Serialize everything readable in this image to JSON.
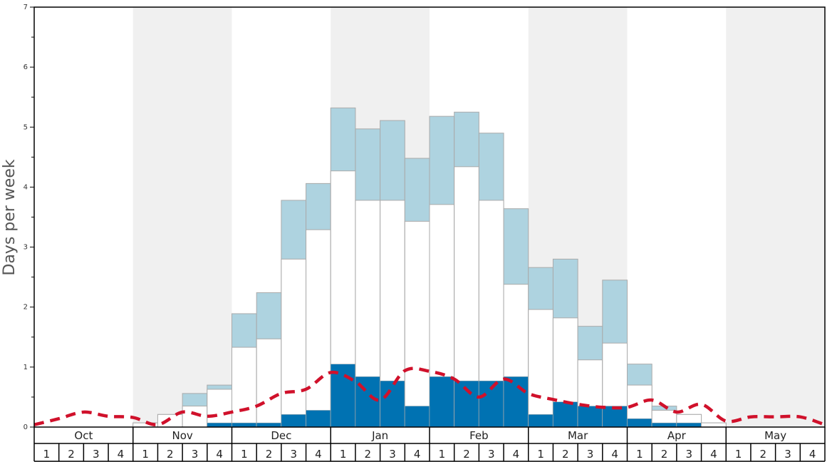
{
  "chart_data": {
    "type": "bar",
    "ylabel": "Days per week",
    "ylim": [
      0,
      7
    ],
    "yticks": [
      "0",
      "1",
      "2",
      "3",
      "4",
      "5",
      "6",
      "7"
    ],
    "months": [
      "Oct",
      "Nov",
      "Dec",
      "Jan",
      "Feb",
      "Mar",
      "Apr",
      "May"
    ],
    "weeks_per_month": [
      "1",
      "2",
      "3",
      "4"
    ],
    "colors": {
      "dark": "#0072b2",
      "white": "#ffffff",
      "light": "#aed3e0",
      "line": "#d0112b",
      "shade": "#f0f0f0",
      "border": "#aaaaaa"
    },
    "series": [
      {
        "values": [
          0,
          0,
          0,
          0,
          0,
          0,
          0,
          0.07,
          0.07,
          0.07,
          0.21,
          0.28,
          1.05,
          0.84,
          0.77,
          0.35,
          0.84,
          0.77,
          0.77,
          0.84,
          0.21,
          0.42,
          0.35,
          0.35,
          0.14,
          0.07,
          0.07,
          0,
          0,
          0,
          0,
          0
        ]
      },
      {
        "values": [
          0,
          0,
          0,
          0,
          0.07,
          0.21,
          0.35,
          0.63,
          1.33,
          1.47,
          2.8,
          3.29,
          4.27,
          3.78,
          3.78,
          3.43,
          3.71,
          4.34,
          3.78,
          2.38,
          1.96,
          1.82,
          1.12,
          1.4,
          0.7,
          0.28,
          0.21,
          0.07,
          0,
          0,
          0,
          0
        ]
      },
      {
        "values": [
          0,
          0,
          0,
          0,
          0.07,
          0.21,
          0.56,
          0.7,
          1.89,
          2.24,
          3.78,
          4.06,
          5.32,
          4.97,
          5.11,
          4.48,
          5.18,
          5.25,
          4.9,
          3.64,
          2.66,
          2.8,
          1.68,
          2.45,
          1.05,
          0.35,
          0.21,
          0.07,
          0,
          0,
          0,
          0
        ]
      },
      {
        "values": [
          0.04,
          0.14,
          0.25,
          0.18,
          0.16,
          0.04,
          0.25,
          0.18,
          0.25,
          0.35,
          0.56,
          0.63,
          0.91,
          0.76,
          0.45,
          0.94,
          0.93,
          0.8,
          0.5,
          0.8,
          0.56,
          0.46,
          0.38,
          0.33,
          0.33,
          0.45,
          0.25,
          0.38,
          0.1,
          0.17,
          0.17,
          0.17,
          0.04
        ]
      }
    ]
  }
}
